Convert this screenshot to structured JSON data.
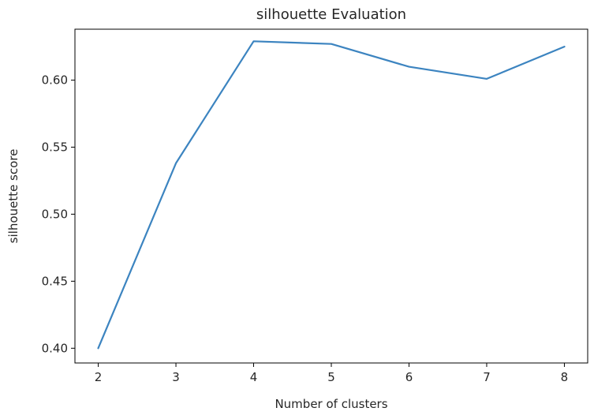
{
  "chart_data": {
    "type": "line",
    "title": "silhouette Evaluation",
    "xlabel": "Number of clusters",
    "ylabel": "silhouette score",
    "x": [
      2,
      3,
      4,
      5,
      6,
      7,
      8
    ],
    "series": [
      {
        "values": [
          0.4,
          0.538,
          0.629,
          0.627,
          0.61,
          0.601,
          0.625
        ],
        "color": "#3c84c0"
      }
    ],
    "xlim": [
      1.7,
      8.3
    ],
    "ylim": [
      0.389,
      0.638
    ],
    "xticks": [
      2,
      3,
      4,
      5,
      6,
      7,
      8
    ],
    "xtick_labels": [
      "2",
      "3",
      "4",
      "5",
      "6",
      "7",
      "8"
    ],
    "yticks": [
      0.4,
      0.45,
      0.5,
      0.55,
      0.6
    ],
    "ytick_labels": [
      "0.40",
      "0.45",
      "0.50",
      "0.55",
      "0.60"
    ],
    "grid": false,
    "legend": "none"
  }
}
